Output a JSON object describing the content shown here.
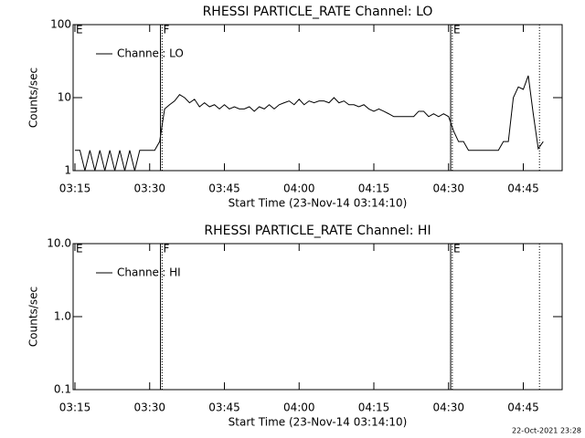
{
  "chart_data": [
    {
      "type": "line",
      "title": "RHESSI PARTICLE_RATE Channel: LO",
      "ylabel": "Counts/sec",
      "xlabel": "Start Time (23-Nov-14 03:14:10)",
      "log_y": true,
      "legend": "upper left",
      "xlim": [
        "03:14:38",
        "04:52:48"
      ],
      "xticks": [
        "03:15",
        "03:30",
        "03:45",
        "04:00",
        "04:15",
        "04:30",
        "04:45"
      ],
      "ylim": [
        1,
        100
      ],
      "yticks": [
        1,
        10,
        100
      ],
      "vlines": [
        {
          "x": "03:32:10",
          "style": "solid"
        },
        {
          "x": "03:32:30",
          "style": "dotted"
        },
        {
          "x": "04:30:25",
          "style": "solid"
        },
        {
          "x": "04:30:45",
          "style": "dotted"
        },
        {
          "x": "04:48:15",
          "style": "dotted"
        }
      ],
      "annotations": [
        {
          "x": "03:14:38",
          "label": "E"
        },
        {
          "x": "03:32:10",
          "label": "F"
        },
        {
          "x": "04:30:25",
          "label": "E"
        }
      ],
      "x": [
        "03:15",
        "03:16",
        "03:17",
        "03:18",
        "03:19",
        "03:20",
        "03:21",
        "03:22",
        "03:23",
        "03:24",
        "03:25",
        "03:26",
        "03:27",
        "03:28",
        "03:29",
        "03:30",
        "03:31",
        "03:32",
        "03:33",
        "03:34",
        "03:35",
        "03:36",
        "03:37",
        "03:38",
        "03:39",
        "03:40",
        "03:41",
        "03:42",
        "03:43",
        "03:44",
        "03:45",
        "03:46",
        "03:47",
        "03:48",
        "03:49",
        "03:50",
        "03:51",
        "03:52",
        "03:53",
        "03:54",
        "03:55",
        "03:56",
        "03:57",
        "03:58",
        "03:59",
        "04:00",
        "04:01",
        "04:02",
        "04:03",
        "04:04",
        "04:05",
        "04:06",
        "04:07",
        "04:08",
        "04:09",
        "04:10",
        "04:11",
        "04:12",
        "04:13",
        "04:14",
        "04:15",
        "04:16",
        "04:17",
        "04:18",
        "04:19",
        "04:20",
        "04:21",
        "04:22",
        "04:23",
        "04:24",
        "04:25",
        "04:26",
        "04:27",
        "04:28",
        "04:29",
        "04:30",
        "04:31",
        "04:32",
        "04:33",
        "04:34",
        "04:35",
        "04:36",
        "04:37",
        "04:38",
        "04:39",
        "04:40",
        "04:41",
        "04:42",
        "04:43",
        "04:44",
        "04:45",
        "04:46",
        "04:47",
        "04:48",
        "04:49"
      ],
      "series": [
        {
          "name": "Channel: LO",
          "color": "#000000",
          "values": [
            1.9,
            1.9,
            1,
            1.9,
            1,
            1.9,
            1,
            1.9,
            1,
            1.9,
            1,
            1.9,
            1,
            1.9,
            1.9,
            1.9,
            1.9,
            2.5,
            7,
            8,
            9,
            11,
            10,
            8.5,
            9.5,
            7.5,
            8.5,
            7.5,
            8,
            7,
            8,
            7,
            7.5,
            7,
            7,
            7.5,
            6.5,
            7.5,
            7,
            8,
            7,
            8,
            8.5,
            9,
            8,
            9.5,
            8,
            9,
            8.5,
            9,
            9,
            8.5,
            10,
            8.5,
            9,
            8,
            8,
            7.5,
            8,
            7,
            6.5,
            7,
            6.5,
            6,
            5.5,
            5.5,
            5.5,
            5.5,
            5.5,
            6.5,
            6.5,
            5.5,
            6,
            5.5,
            6,
            5.5,
            3.5,
            2.5,
            2.5,
            1.9,
            1.9,
            1.9,
            1.9,
            1.9,
            1.9,
            1.9,
            2.5,
            2.5,
            10,
            14,
            13,
            20,
            6,
            2,
            2.5
          ]
        }
      ]
    },
    {
      "type": "line",
      "title": "RHESSI PARTICLE_RATE Channel: HI",
      "ylabel": "Counts/sec",
      "xlabel": "Start Time (23-Nov-14 03:14:10)",
      "log_y": true,
      "legend": "upper left",
      "xlim": [
        "03:14:38",
        "04:52:48"
      ],
      "xticks": [
        "03:15",
        "03:30",
        "03:45",
        "04:00",
        "04:15",
        "04:30",
        "04:45"
      ],
      "ylim": [
        0.1,
        10
      ],
      "yticks": [
        0.1,
        {
          "value": 1,
          "label": "1.0"
        },
        {
          "value": 10,
          "label": "10.0"
        }
      ],
      "vlines": [
        {
          "x": "03:32:10",
          "style": "solid"
        },
        {
          "x": "03:32:30",
          "style": "dotted"
        },
        {
          "x": "04:30:25",
          "style": "solid"
        },
        {
          "x": "04:30:45",
          "style": "dotted"
        },
        {
          "x": "04:48:15",
          "style": "dotted"
        }
      ],
      "annotations": [
        {
          "x": "03:14:38",
          "label": "E"
        },
        {
          "x": "03:32:10",
          "label": "F"
        },
        {
          "x": "04:30:25",
          "label": "E"
        }
      ],
      "x": [],
      "series": [
        {
          "name": "Channel: HI",
          "color": "#000000",
          "values": []
        }
      ]
    }
  ],
  "footer": "22-Oct-2021 23:28"
}
